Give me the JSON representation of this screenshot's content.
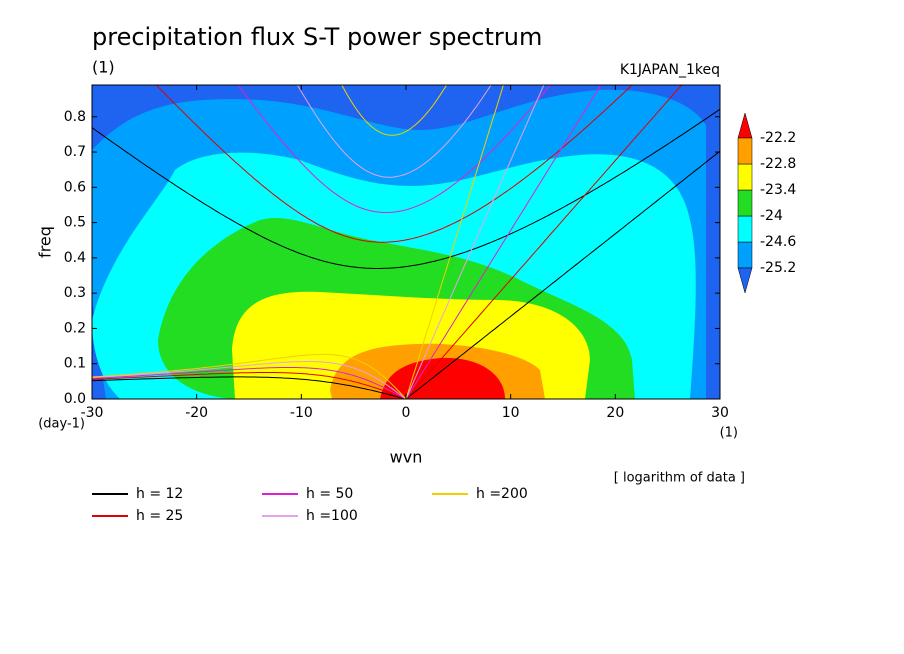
{
  "chart_data": {
    "type": "contour",
    "title": "precipitation flux S-T power spectrum",
    "subtitle": "(1)",
    "run_label": "K1JAPAN_1keq",
    "x_label": "wvn",
    "x_unit": "(1)",
    "y_label": "freq",
    "y_unit": "(day-1)",
    "note": "[ logarithm of data ]",
    "xlim": [
      -30,
      30
    ],
    "xticks": [
      -30,
      -20,
      -10,
      0,
      10,
      20,
      30
    ],
    "ylim": [
      0,
      0.89
    ],
    "yticks": [
      {
        "value": 0,
        "label": "0.0"
      },
      0.1,
      0.2,
      0.3,
      0.4,
      0.5,
      0.6,
      0.7,
      0.8
    ],
    "levels": [
      -25.2,
      -24.6,
      -24,
      -23.4,
      -22.8,
      -22.2
    ],
    "colors": [
      "#1e64f0",
      "#00a0ff",
      "#00ffff",
      "#22dd22",
      "#ffff00",
      "#ffa000",
      "#ff0000"
    ],
    "series": [
      {
        "name": "h = 12",
        "h": 12,
        "color": "#000000"
      },
      {
        "name": "h = 25",
        "h": 25,
        "color": "#e00000"
      },
      {
        "name": "h = 50",
        "h": 50,
        "color": "#e020d0"
      },
      {
        "name": "h =100",
        "h": 100,
        "color": "#e8a0e8"
      },
      {
        "name": "h =200",
        "h": 200,
        "color": "#f0d000"
      }
    ]
  }
}
